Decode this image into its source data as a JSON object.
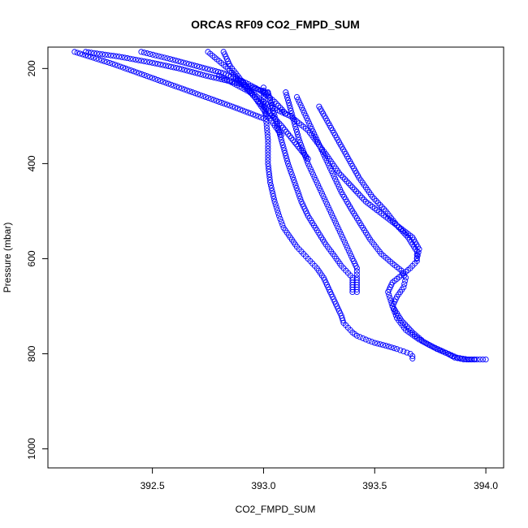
{
  "chart_data": {
    "type": "scatter",
    "title": "ORCAS RF09 CO2_FMPD_SUM",
    "xlabel": "CO2_FMPD_SUM",
    "ylabel": "Pressure (mbar)",
    "xlim": [
      392.03,
      394.08
    ],
    "ylim": [
      1040,
      155
    ],
    "y_reversed": true,
    "x_ticks": [
      392.5,
      393.0,
      393.5,
      394.0
    ],
    "x_tick_labels": [
      "392.5",
      "393.0",
      "393.5",
      "394.0"
    ],
    "y_ticks": [
      200,
      400,
      600,
      800,
      1000
    ],
    "y_tick_labels": [
      "200",
      "400",
      "600",
      "800",
      "1000"
    ],
    "grid": false,
    "legend": "none",
    "marker": "open-circle",
    "colors": {
      "points": "#0000ff",
      "axes": "#000000"
    },
    "series": [
      {
        "x": [
          393.0,
          393.0,
          393.01,
          393.02,
          393.02,
          393.03,
          393.05,
          393.07,
          393.09,
          393.12,
          393.15,
          393.18,
          393.21,
          393.24,
          393.27,
          393.29,
          393.31,
          393.33,
          393.35,
          393.36,
          393.38,
          393.4,
          393.42,
          393.46,
          393.5,
          393.55,
          393.6,
          393.63,
          393.66,
          393.67,
          393.67
        ],
        "y": [
          240,
          270,
          300,
          350,
          400,
          440,
          480,
          510,
          535,
          555,
          575,
          590,
          605,
          620,
          640,
          660,
          680,
          700,
          720,
          735,
          745,
          755,
          762,
          770,
          777,
          783,
          790,
          795,
          800,
          805,
          810
        ]
      },
      {
        "x": [
          393.02,
          393.05,
          393.08,
          393.11,
          393.14,
          393.17,
          393.2,
          393.24,
          393.28,
          393.32,
          393.35,
          393.38,
          393.4,
          393.4,
          393.4,
          393.4,
          393.4
        ],
        "y": [
          250,
          300,
          350,
          400,
          440,
          480,
          510,
          540,
          570,
          595,
          615,
          630,
          640,
          650,
          660,
          665,
          670
        ]
      },
      {
        "x": [
          393.1,
          393.13,
          393.16,
          393.2,
          393.24,
          393.28,
          393.32,
          393.36,
          393.4,
          393.42,
          393.42,
          393.42,
          393.42
        ],
        "y": [
          250,
          300,
          350,
          400,
          440,
          480,
          520,
          560,
          600,
          620,
          640,
          655,
          670
        ]
      },
      {
        "x": [
          393.15,
          393.2,
          393.25,
          393.3,
          393.35,
          393.4,
          393.44,
          393.48,
          393.53,
          393.58,
          393.62,
          393.64,
          393.63,
          393.6,
          393.58,
          393.6,
          393.64,
          393.7,
          393.76,
          393.82,
          393.87,
          393.92,
          393.96,
          394.0
        ],
        "y": [
          260,
          310,
          360,
          410,
          460,
          500,
          530,
          560,
          590,
          610,
          625,
          640,
          660,
          680,
          700,
          725,
          750,
          770,
          785,
          798,
          808,
          812,
          812,
          812
        ]
      },
      {
        "x": [
          393.25,
          393.31,
          393.37,
          393.43,
          393.49,
          393.55,
          393.6,
          393.65,
          393.69,
          393.69,
          393.66,
          393.62,
          393.58,
          393.56,
          393.58,
          393.62,
          393.67,
          393.72,
          393.78,
          393.83,
          393.86,
          393.9,
          393.95
        ],
        "y": [
          280,
          330,
          380,
          430,
          470,
          500,
          530,
          555,
          585,
          605,
          620,
          635,
          650,
          670,
          700,
          730,
          755,
          775,
          790,
          800,
          808,
          812,
          812
        ]
      },
      {
        "x": [
          392.8,
          392.88,
          392.96,
          393.0,
          393.05,
          393.12,
          393.2,
          393.28,
          393.34,
          393.4,
          393.46,
          393.53,
          393.6,
          393.67,
          393.7,
          393.69
        ],
        "y": [
          215,
          235,
          255,
          270,
          285,
          300,
          330,
          380,
          420,
          450,
          480,
          505,
          530,
          555,
          580,
          600
        ]
      },
      {
        "x": [
          392.15,
          392.32,
          392.5,
          392.68,
          392.86,
          393.0
        ],
        "y": [
          165,
          190,
          220,
          250,
          280,
          305
        ]
      },
      {
        "x": [
          392.2,
          392.35,
          392.5,
          392.62,
          392.74,
          392.86,
          392.95,
          393.02
        ],
        "y": [
          165,
          175,
          188,
          200,
          215,
          228,
          240,
          252
        ]
      },
      {
        "x": [
          392.45,
          392.58,
          392.7,
          392.82,
          392.92,
          393.0,
          393.05,
          393.1
        ],
        "y": [
          165,
          180,
          195,
          210,
          230,
          250,
          270,
          295
        ]
      },
      {
        "x": [
          392.75,
          392.84,
          392.9,
          392.96,
          393.02,
          393.08,
          393.14,
          393.2
        ],
        "y": [
          165,
          200,
          230,
          260,
          290,
          320,
          355,
          390
        ]
      },
      {
        "x": [
          392.82,
          392.85,
          392.9,
          392.96,
          393.02,
          393.08
        ],
        "y": [
          165,
          195,
          225,
          260,
          300,
          340
        ]
      }
    ]
  }
}
